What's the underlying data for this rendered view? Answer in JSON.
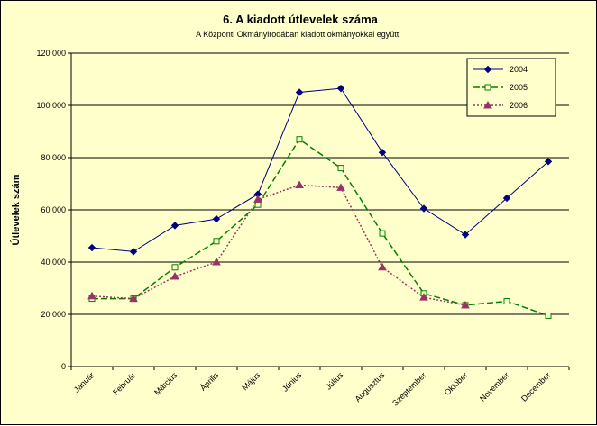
{
  "chart_data": {
    "type": "line",
    "title": "6. A  kiadott útlevelek száma",
    "subtitle": "A Központi Okmányirodában kiadott okmányokkal együtt.",
    "xlabel": "",
    "ylabel": "Útlevelek szám",
    "ylim": [
      0,
      120000
    ],
    "yticks": [
      0,
      20000,
      40000,
      60000,
      80000,
      100000,
      120000
    ],
    "ytick_labels": [
      "0",
      "20 000",
      "40 000",
      "60 000",
      "80 000",
      "100 000",
      "120 000"
    ],
    "grid": true,
    "legend_position": "top-right",
    "categories": [
      "Január",
      "Február",
      "Március",
      "Április",
      "Május",
      "Június",
      "Július",
      "Augusztus",
      "Szeptember",
      "Október",
      "November",
      "December"
    ],
    "series": [
      {
        "name": "2004",
        "color": "#000080",
        "marker": "diamond",
        "dash": "solid",
        "values": [
          45500,
          44000,
          54000,
          56500,
          66000,
          105000,
          106500,
          82000,
          60500,
          50500,
          64500,
          78500
        ]
      },
      {
        "name": "2005",
        "color": "#008000",
        "marker": "square-open",
        "dash": "dashed",
        "values": [
          26000,
          26000,
          38000,
          48000,
          62000,
          87000,
          76000,
          51000,
          28000,
          23500,
          25000,
          19500
        ]
      },
      {
        "name": "2006",
        "color": "#993366",
        "marker": "triangle",
        "dash": "dotted",
        "values": [
          27000,
          26000,
          34500,
          40000,
          64000,
          69500,
          68500,
          38000,
          26500,
          23500,
          null,
          null
        ]
      }
    ]
  }
}
